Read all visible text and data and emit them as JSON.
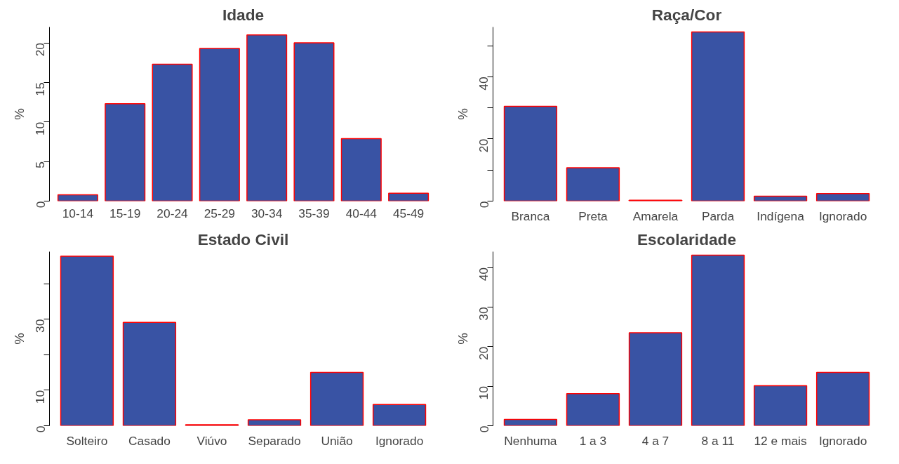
{
  "chart_data": [
    {
      "type": "bar",
      "title": "Idade",
      "ylabel": "%",
      "categories": [
        "10-14",
        "15-19",
        "20-24",
        "25-29",
        "30-34",
        "35-39",
        "40-44",
        "45-49"
      ],
      "values": [
        0.8,
        12.3,
        17.3,
        19.3,
        21.0,
        20.0,
        7.9,
        1.0
      ],
      "color": "#3953a4",
      "ylim": [
        0,
        22
      ],
      "yticks": [
        0,
        5,
        10,
        15,
        20
      ],
      "grid": false
    },
    {
      "type": "bar",
      "title": "Raça/Cor",
      "ylabel": "%",
      "categories": [
        "Branca",
        "Preta",
        "Amarela",
        "Parda",
        "Indígena",
        "Ignorado"
      ],
      "values": [
        30.5,
        10.7,
        0.3,
        54.4,
        1.6,
        2.4
      ],
      "color": "#3953a4",
      "ylim": [
        0,
        56
      ],
      "yticks": [
        0,
        {
          "value": 10,
          "label": null
        },
        20,
        {
          "value": 30,
          "label": null
        },
        40,
        {
          "value": 50,
          "label": null
        }
      ],
      "grid": false
    },
    {
      "type": "bar",
      "title": "Estado Civil",
      "ylabel": "%",
      "categories": [
        "Solteiro",
        "Casado",
        "Viúvo",
        "Separado",
        "União",
        "Ignorado"
      ],
      "values": [
        47.7,
        29.1,
        0.3,
        1.7,
        15.0,
        6.0
      ],
      "color": "#3953a4",
      "ylim": [
        0,
        49
      ],
      "yticks": [
        0,
        10,
        {
          "value": 20,
          "label": null
        },
        30,
        {
          "value": 40,
          "label": null
        }
      ],
      "grid": false
    },
    {
      "type": "bar",
      "title": "Escolaridade",
      "ylabel": "%",
      "categories": [
        "Nenhuma",
        "1 a 3",
        "4 a 7",
        "8 a 11",
        "12 e mais",
        "Ignorado"
      ],
      "values": [
        1.6,
        8.1,
        23.5,
        43.1,
        10.1,
        13.5
      ],
      "color": "#3953a4",
      "ylim": [
        0,
        44
      ],
      "yticks": [
        0,
        10,
        20,
        30,
        40
      ],
      "grid": false
    }
  ]
}
